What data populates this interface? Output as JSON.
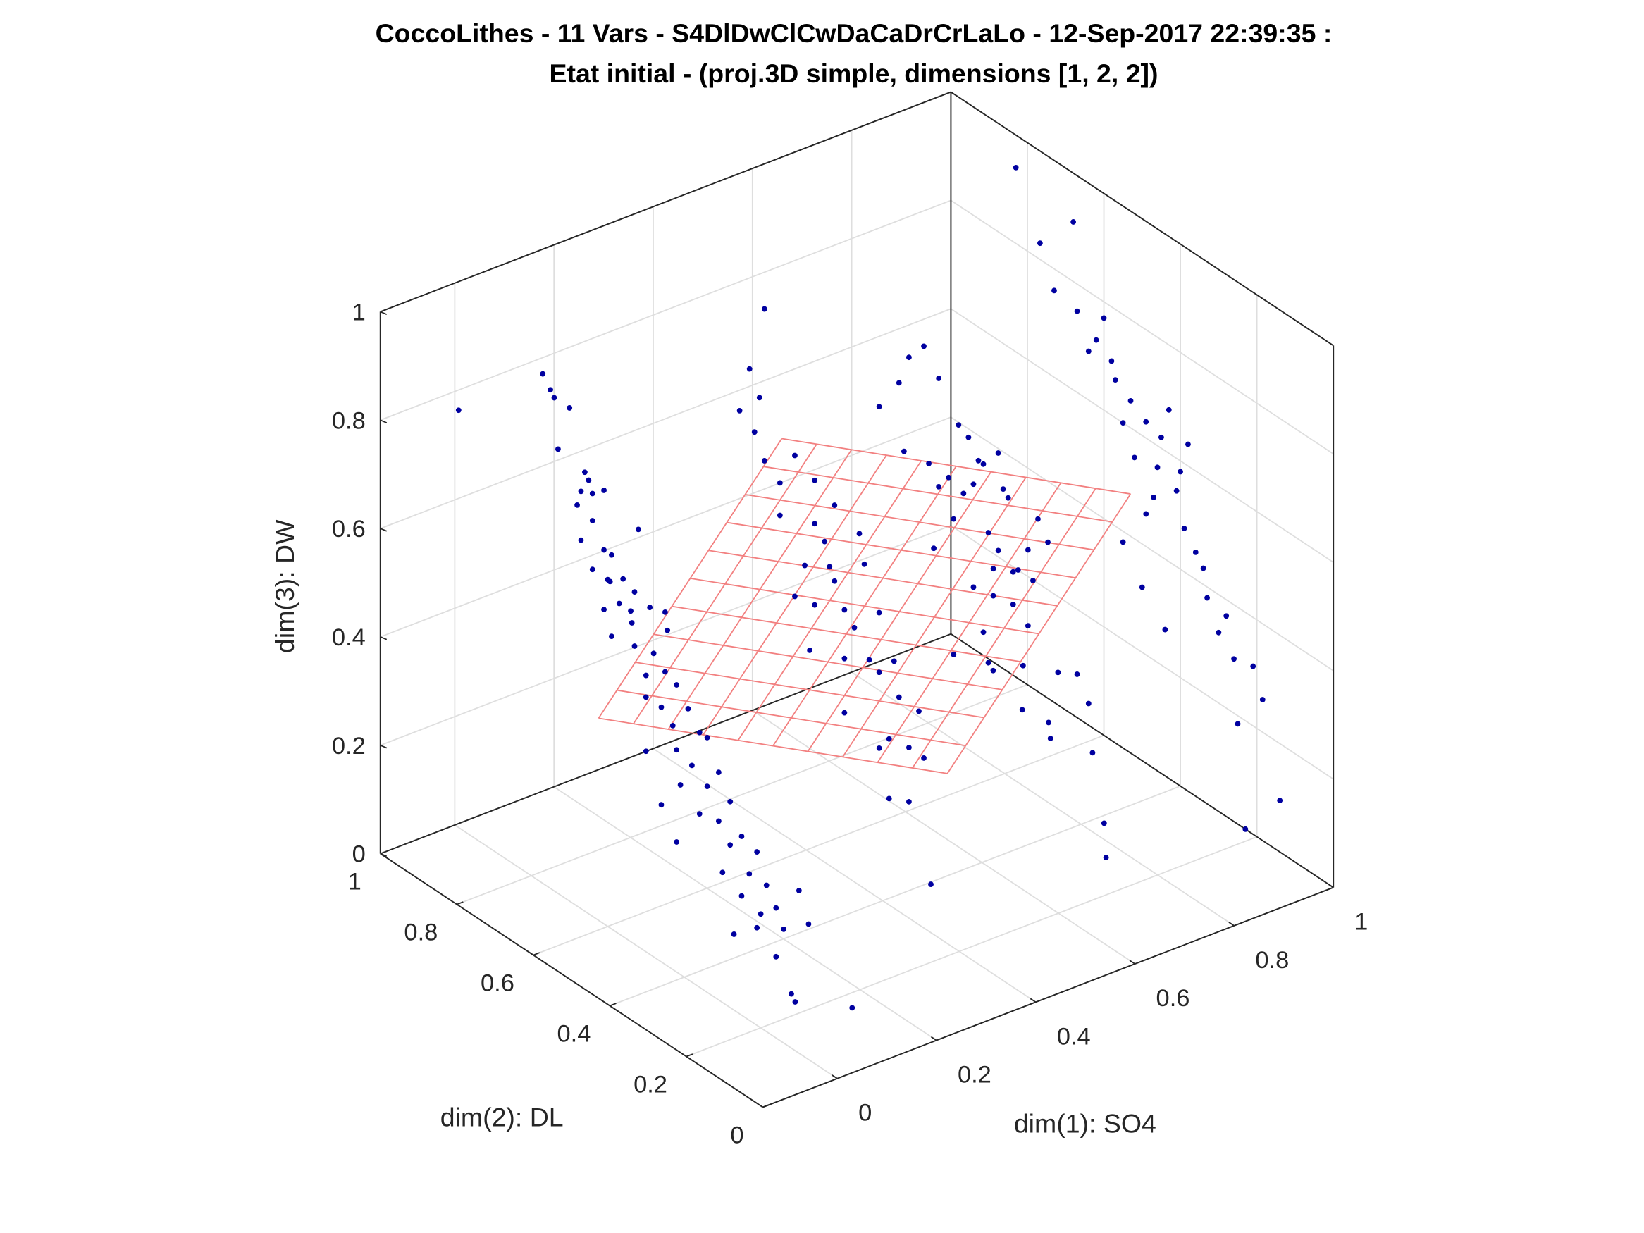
{
  "chart_data": {
    "type": "scatter",
    "projection": "3d",
    "title": [
      "CoccoLithes - 11 Vars - S4DlDwClCwDaCaDrCrLaLo - 12-Sep-2017 22:39:35 :",
      "Etat initial - (proj.3D simple, dimensions [1, 2, 2])"
    ],
    "xlabel": "dim(1): SO4",
    "ylabel": "dim(2): DL",
    "zlabel": "dim(3): DW",
    "xlim": [
      -0.15,
      1
    ],
    "ylim": [
      0,
      1
    ],
    "zlim": [
      0,
      1
    ],
    "xticks": [
      "0",
      "0.2",
      "0.4",
      "0.6",
      "0.8",
      "1"
    ],
    "yticks": [
      "0",
      "0.2",
      "0.4",
      "0.6",
      "0.8",
      "1"
    ],
    "zticks": [
      "0",
      "0.2",
      "0.4",
      "0.6",
      "0.8",
      "1"
    ],
    "grid": true,
    "colors": {
      "points": "#0000a0",
      "plane": "#f28080",
      "grid": "#dedede",
      "box": "#262626"
    },
    "plane": {
      "corners": [
        [
          0,
          0.624,
          0.373
        ],
        [
          0.703,
          0.624,
          0.023
        ],
        [
          0.703,
          0.145,
          0.763
        ],
        [
          0,
          0.145,
          1.113
        ]
      ],
      "divisions": 10
    },
    "points": [
      [
        0,
        0.99,
        0.77
      ],
      [
        0,
        0.77,
        0.94
      ],
      [
        0,
        0.75,
        0.92
      ],
      [
        0,
        0.74,
        0.91
      ],
      [
        0,
        0.7,
        0.91
      ],
      [
        0,
        0.73,
        0.82
      ],
      [
        0,
        0.66,
        0.81
      ],
      [
        0,
        0.65,
        0.8
      ],
      [
        0,
        0.67,
        0.77
      ],
      [
        0,
        0.64,
        0.78
      ],
      [
        0,
        0.61,
        0.8
      ],
      [
        0,
        0.68,
        0.74
      ],
      [
        0,
        0.64,
        0.73
      ],
      [
        0,
        0.67,
        0.68
      ],
      [
        0,
        0.61,
        0.69
      ],
      [
        0,
        0.59,
        0.69
      ],
      [
        0,
        0.64,
        0.64
      ],
      [
        0,
        0.6,
        0.64
      ],
      [
        0,
        0.56,
        0.66
      ],
      [
        0,
        0.53,
        0.65
      ],
      [
        0,
        0.52,
        0.77
      ],
      [
        0,
        0.57,
        0.61
      ],
      [
        0,
        0.61,
        0.58
      ],
      [
        0,
        0.54,
        0.61
      ],
      [
        0,
        0.49,
        0.64
      ],
      [
        0,
        0.45,
        0.65
      ],
      [
        0,
        0.59,
        0.54
      ],
      [
        0,
        0.53,
        0.55
      ],
      [
        0,
        0.48,
        0.56
      ],
      [
        0,
        0.5,
        0.51
      ],
      [
        0,
        0.45,
        0.54
      ],
      [
        0,
        0.42,
        0.53
      ],
      [
        0,
        0.5,
        0.47
      ],
      [
        0,
        0.46,
        0.47
      ],
      [
        0,
        0.39,
        0.5
      ],
      [
        0,
        0.43,
        0.45
      ],
      [
        0,
        0.36,
        0.47
      ],
      [
        0,
        0.5,
        0.37
      ],
      [
        0,
        0.42,
        0.41
      ],
      [
        0,
        0.34,
        0.47
      ],
      [
        0,
        0.38,
        0.4
      ],
      [
        0,
        0.31,
        0.42
      ],
      [
        0,
        0.41,
        0.35
      ],
      [
        0,
        0.34,
        0.38
      ],
      [
        0,
        0.28,
        0.38
      ],
      [
        0,
        0.36,
        0.32
      ],
      [
        0,
        0.46,
        0.29
      ],
      [
        0,
        0.31,
        0.33
      ],
      [
        0,
        0.25,
        0.33
      ],
      [
        0,
        0.42,
        0.24
      ],
      [
        0,
        0.28,
        0.3
      ],
      [
        0,
        0.21,
        0.32
      ],
      [
        0,
        0.3,
        0.24
      ],
      [
        0,
        0.23,
        0.27
      ],
      [
        0,
        0.185,
        0.27
      ],
      [
        0,
        0.25,
        0.22
      ],
      [
        0,
        0.2,
        0.21
      ],
      [
        0,
        0.16,
        0.24
      ],
      [
        0,
        0.1,
        0.3
      ],
      [
        0,
        0.21,
        0.18
      ],
      [
        0,
        0.14,
        0.21
      ],
      [
        0,
        0.075,
        0.25
      ],
      [
        0,
        0.27,
        0.14
      ],
      [
        0,
        0.16,
        0.15
      ],
      [
        0,
        0.12,
        0.1
      ],
      [
        0,
        0.11,
        0.09
      ],
      [
        0.03,
        0.0,
        0.12
      ],
      [
        0.02,
        0.62,
        0.62
      ],
      [
        0.01,
        0.55,
        0.58
      ],
      [
        0.02,
        0.47,
        0.6
      ],
      [
        1,
        0.83,
        0.94
      ],
      [
        1,
        0.767,
        0.83
      ],
      [
        1,
        0.68,
        0.91
      ],
      [
        1,
        0.73,
        0.76
      ],
      [
        1,
        0.67,
        0.75
      ],
      [
        1,
        0.6,
        0.77
      ],
      [
        1,
        0.64,
        0.69
      ],
      [
        1,
        0.57,
        0.67
      ],
      [
        1,
        0.53,
        0.65
      ],
      [
        1,
        0.49,
        0.63
      ],
      [
        1,
        0.43,
        0.68
      ],
      [
        1,
        0.38,
        0.64
      ],
      [
        1,
        0.46,
        0.56
      ],
      [
        1,
        0.49,
        0.46
      ],
      [
        1,
        0.41,
        0.54
      ],
      [
        1,
        0.39,
        0.48
      ],
      [
        1,
        0.34,
        0.43
      ],
      [
        1,
        0.28,
        0.37
      ],
      [
        1,
        0.21,
        0.31
      ],
      [
        1,
        0.185,
        0.26
      ],
      [
        1,
        0.25,
        0.185
      ],
      [
        1,
        0.14,
        0.095
      ],
      [
        1,
        0.23,
        0.0
      ],
      [
        1,
        0.55,
        0.38
      ],
      [
        1,
        0.5,
        0.32
      ],
      [
        1,
        0.44,
        0.27
      ],
      [
        1,
        0.72,
        0.06
      ],
      [
        1,
        0.67,
        0.08
      ],
      [
        1,
        0.64,
        0.04
      ],
      [
        0.9,
        0.61,
        0.025
      ],
      [
        0.8,
        0.34,
        0.03
      ],
      [
        0.75,
        0.27,
        0.017
      ],
      [
        0.8,
        0.63,
        0.176
      ],
      [
        1,
        0.62,
        0.72
      ],
      [
        1,
        0.55,
        0.6
      ],
      [
        1,
        0.47,
        0.5
      ],
      [
        1,
        0.36,
        0.45
      ],
      [
        1,
        0.3,
        0.33
      ],
      [
        1,
        0.45,
        0.62
      ],
      [
        1,
        0.4,
        0.58
      ],
      [
        1,
        0.33,
        0.38
      ],
      [
        1,
        0.26,
        0.3
      ],
      [
        1,
        0.52,
        0.55
      ],
      [
        1,
        0.58,
        0.7
      ],
      [
        0.85,
        0.55,
        0.1
      ],
      [
        0.9,
        0.5,
        0.05
      ],
      [
        0.82,
        0.58,
        0.12
      ],
      [
        0.61,
        0.5,
        0.66
      ],
      [
        0.68,
        0.5,
        0.66
      ],
      [
        0.59,
        0.5,
        0.65
      ],
      [
        0.64,
        0.5,
        0.62
      ],
      [
        0.72,
        0.5,
        0.6
      ],
      [
        0.7,
        0.5,
        0.46
      ],
      [
        0.74,
        0.5,
        0.44
      ],
      [
        0.77,
        0.5,
        0.47
      ],
      [
        0.57,
        0.5,
        0.7
      ],
      [
        0.53,
        0.5,
        0.91
      ],
      [
        0.56,
        0.5,
        0.92
      ],
      [
        0.47,
        0.5,
        0.84
      ],
      [
        0.59,
        0.5,
        0.85
      ],
      [
        0.51,
        0.5,
        0.87
      ],
      [
        0.47,
        0.8,
        0.88
      ],
      [
        0.44,
        0.8,
        0.78
      ],
      [
        0.46,
        0.8,
        0.72
      ],
      [
        0.42,
        0.8,
        0.71
      ],
      [
        0.45,
        0.8,
        0.66
      ],
      [
        0.47,
        0.8,
        0.6
      ],
      [
        0.27,
        0.5,
        0.71
      ],
      [
        0.34,
        0.5,
        0.67
      ],
      [
        0.38,
        0.5,
        0.69
      ],
      [
        0.32,
        0.5,
        0.6
      ],
      [
        0.38,
        0.5,
        0.55
      ],
      [
        0.34,
        0.5,
        0.52
      ],
      [
        0.4,
        0.5,
        0.49
      ],
      [
        0.33,
        0.5,
        0.44
      ],
      [
        0.42,
        0.5,
        0.45
      ],
      [
        0.47,
        0.5,
        0.46
      ],
      [
        0.44,
        0.5,
        0.56
      ],
      [
        0.27,
        0.5,
        0.77
      ],
      [
        0.3,
        0.5,
        0.81
      ],
      [
        0.34,
        0.5,
        0.75
      ],
      [
        0.4,
        0.5,
        0.4
      ],
      [
        0.47,
        0.5,
        0.35
      ],
      [
        0.5,
        0.5,
        0.36
      ],
      [
        0.51,
        0.5,
        0.29
      ],
      [
        0.4,
        0.5,
        0.3
      ],
      [
        0.47,
        0.5,
        0.21
      ],
      [
        0.49,
        0.5,
        0.22
      ],
      [
        0.53,
        0.5,
        0.19
      ],
      [
        0.56,
        0.5,
        0.16
      ],
      [
        0.49,
        0.5,
        0.11
      ],
      [
        0.53,
        0.5,
        0.09
      ],
      [
        0.42,
        0.3,
        0.07
      ],
      [
        0.69,
        0.5,
        0.53
      ],
      [
        0.71,
        0.5,
        0.49
      ],
      [
        0.75,
        0.5,
        0.44
      ],
      [
        0.78,
        0.5,
        0.41
      ],
      [
        0.74,
        0.5,
        0.38
      ],
      [
        0.77,
        0.5,
        0.33
      ],
      [
        0.7,
        0.5,
        0.41
      ],
      [
        0.68,
        0.5,
        0.35
      ],
      [
        0.69,
        0.5,
        0.29
      ],
      [
        0.62,
        0.5,
        0.33
      ],
      [
        0.76,
        0.5,
        0.26
      ],
      [
        0.63,
        0.5,
        0.75
      ],
      [
        0.65,
        0.5,
        0.72
      ],
      [
        0.67,
        0.5,
        0.67
      ],
      [
        0.71,
        0.5,
        0.67
      ],
      [
        0.66,
        0.5,
        0.63
      ],
      [
        0.36,
        0.5,
        0.63
      ],
      [
        0.43,
        0.5,
        0.62
      ],
      [
        0.3,
        0.5,
        0.55
      ],
      [
        0.37,
        0.5,
        0.58
      ],
      [
        0.45,
        0.5,
        0.38
      ],
      [
        0.55,
        0.5,
        0.25
      ],
      [
        0.73,
        0.5,
        0.58
      ],
      [
        0.79,
        0.5,
        0.52
      ],
      [
        0.81,
        0.5,
        0.47
      ],
      [
        0.62,
        0.5,
        0.58
      ],
      [
        0.58,
        0.5,
        0.54
      ],
      [
        0.66,
        0.5,
        0.44
      ],
      [
        0.52,
        0.5,
        0.74
      ]
    ]
  }
}
